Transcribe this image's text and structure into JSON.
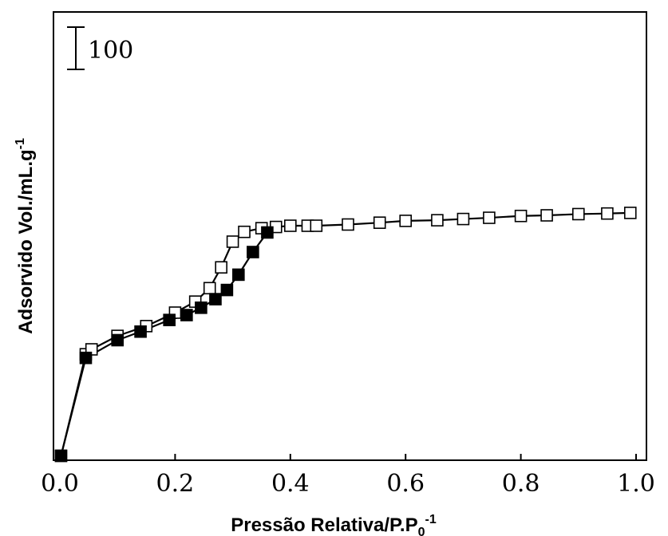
{
  "chart_data": {
    "type": "scatter",
    "xlabel": "Pressão Relativa/P.P",
    "xlabel_sub": "0",
    "xlabel_sup": "-1",
    "ylabel": "Adsorvido Vol./mL.g",
    "ylabel_sup": "-1",
    "xlim": [
      0.0,
      1.0
    ],
    "ylim": [
      0,
      700
    ],
    "x_ticks": [
      0.0,
      0.2,
      0.4,
      0.6,
      0.8,
      1.0
    ],
    "x_tick_labels": [
      "0.0",
      "0.2",
      "0.4",
      "0.6",
      "0.8",
      "1.0"
    ],
    "y_ticks_shown": false,
    "scale_bar": {
      "label": "100",
      "value": 100
    },
    "grid": false,
    "series": [
      {
        "marker": "filled-square",
        "color": "#000000",
        "points": [
          [
            0.002,
            2
          ],
          [
            0.045,
            162
          ],
          [
            0.1,
            191
          ],
          [
            0.14,
            205
          ],
          [
            0.19,
            224
          ],
          [
            0.22,
            232
          ],
          [
            0.245,
            244
          ],
          [
            0.27,
            258
          ],
          [
            0.29,
            273
          ],
          [
            0.31,
            298
          ],
          [
            0.335,
            335
          ],
          [
            0.36,
            367
          ]
        ]
      },
      {
        "marker": "open-square",
        "color": "#000000",
        "points": [
          [
            0.002,
            2
          ],
          [
            0.045,
            168
          ],
          [
            0.055,
            176
          ],
          [
            0.1,
            198
          ],
          [
            0.15,
            214
          ],
          [
            0.2,
            236
          ],
          [
            0.235,
            254
          ],
          [
            0.26,
            276
          ],
          [
            0.28,
            310
          ],
          [
            0.3,
            352
          ],
          [
            0.32,
            368
          ],
          [
            0.35,
            374
          ],
          [
            0.375,
            376
          ],
          [
            0.4,
            378
          ],
          [
            0.43,
            378
          ],
          [
            0.445,
            378
          ],
          [
            0.5,
            380
          ],
          [
            0.555,
            383
          ],
          [
            0.6,
            386
          ],
          [
            0.655,
            387
          ],
          [
            0.7,
            389
          ],
          [
            0.745,
            391
          ],
          [
            0.8,
            394
          ],
          [
            0.845,
            395
          ],
          [
            0.9,
            397
          ],
          [
            0.95,
            398
          ],
          [
            0.99,
            399
          ]
        ]
      }
    ]
  }
}
